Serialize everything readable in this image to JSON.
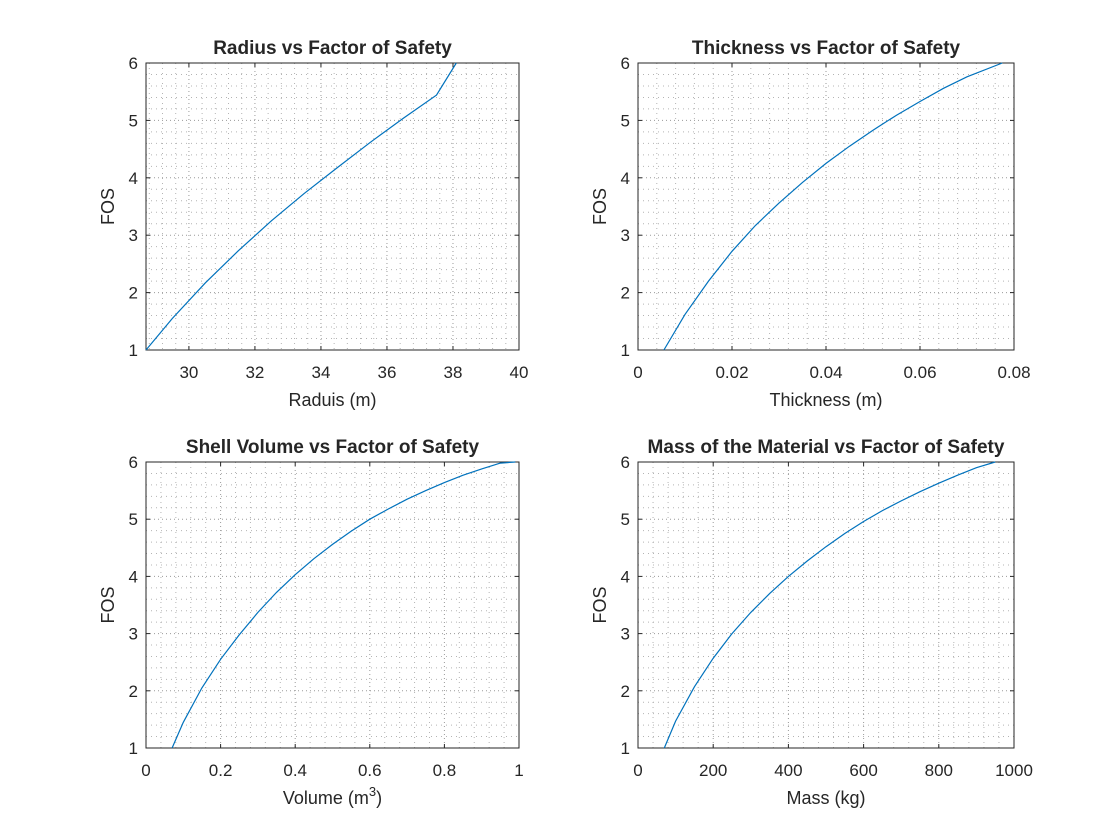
{
  "chart_data": [
    {
      "type": "line",
      "title": "Radius vs Factor of Safety",
      "xlabel": "Raduis (m)",
      "ylabel": "FOS",
      "xlim": [
        28.7,
        40
      ],
      "ylim": [
        1,
        6
      ],
      "xticks": [
        30,
        32,
        34,
        36,
        38,
        40
      ],
      "yticks": [
        1,
        2,
        3,
        4,
        5,
        6
      ],
      "grid": true,
      "series": [
        {
          "x": [
            28.7,
            29.5,
            30.5,
            31.5,
            32.5,
            33.5,
            34.5,
            35.5,
            36.5,
            37.5,
            38.1
          ],
          "y": [
            1.0,
            1.55,
            2.17,
            2.73,
            3.25,
            3.73,
            4.18,
            4.62,
            5.04,
            5.44,
            6.0
          ]
        }
      ],
      "color": "#0072bd"
    },
    {
      "type": "line",
      "title": "Thickness vs Factor of Safety",
      "xlabel": "Thickness (m)",
      "ylabel": "FOS",
      "xlim": [
        0,
        0.08
      ],
      "ylim": [
        1,
        6
      ],
      "xticks": [
        "0",
        "0.02",
        "0.04",
        "0.06",
        "0.08"
      ],
      "yticks": [
        1,
        2,
        3,
        4,
        5,
        6
      ],
      "grid": true,
      "series": [
        {
          "x": [
            0.0055,
            0.01,
            0.015,
            0.02,
            0.025,
            0.03,
            0.035,
            0.04,
            0.045,
            0.05,
            0.055,
            0.06,
            0.065,
            0.07,
            0.0775
          ],
          "y": [
            1.0,
            1.62,
            2.2,
            2.72,
            3.17,
            3.56,
            3.92,
            4.25,
            4.55,
            4.83,
            5.09,
            5.33,
            5.56,
            5.76,
            6.0
          ]
        }
      ],
      "color": "#0072bd"
    },
    {
      "type": "line",
      "title": "Shell Volume vs Factor of Safety",
      "xlabel": "Volume (m",
      "xlabel_superscript": "3",
      "xlabel_suffix": ")",
      "ylabel": "FOS",
      "xlim": [
        0,
        1
      ],
      "ylim": [
        1,
        6
      ],
      "xticks": [
        "0",
        "0.2",
        "0.4",
        "0.6",
        "0.8",
        "1"
      ],
      "yticks": [
        1,
        2,
        3,
        4,
        5,
        6
      ],
      "grid": true,
      "series": [
        {
          "x": [
            0.07,
            0.1,
            0.15,
            0.2,
            0.25,
            0.3,
            0.35,
            0.4,
            0.45,
            0.5,
            0.55,
            0.6,
            0.65,
            0.7,
            0.75,
            0.8,
            0.85,
            0.9,
            0.95,
            0.99
          ],
          "y": [
            1.0,
            1.45,
            2.05,
            2.55,
            2.98,
            3.37,
            3.72,
            4.03,
            4.31,
            4.56,
            4.79,
            5.0,
            5.18,
            5.35,
            5.5,
            5.64,
            5.77,
            5.88,
            5.98,
            6.0
          ]
        }
      ],
      "color": "#0072bd"
    },
    {
      "type": "line",
      "title": "Mass of the Material vs Factor of Safety",
      "xlabel": "Mass (kg)",
      "ylabel": "FOS",
      "xlim": [
        0,
        1000
      ],
      "ylim": [
        1,
        6
      ],
      "xticks": [
        "0",
        "200",
        "400",
        "600",
        "800",
        "1000"
      ],
      "yticks": [
        1,
        2,
        3,
        4,
        5,
        6
      ],
      "grid": true,
      "series": [
        {
          "x": [
            70,
            100,
            150,
            200,
            250,
            300,
            350,
            400,
            450,
            500,
            550,
            600,
            650,
            700,
            750,
            800,
            850,
            900,
            950
          ],
          "y": [
            1.0,
            1.47,
            2.07,
            2.57,
            3.0,
            3.37,
            3.7,
            4.0,
            4.27,
            4.52,
            4.75,
            4.96,
            5.15,
            5.32,
            5.48,
            5.63,
            5.77,
            5.9,
            6.0
          ]
        }
      ],
      "color": "#0072bd"
    }
  ]
}
